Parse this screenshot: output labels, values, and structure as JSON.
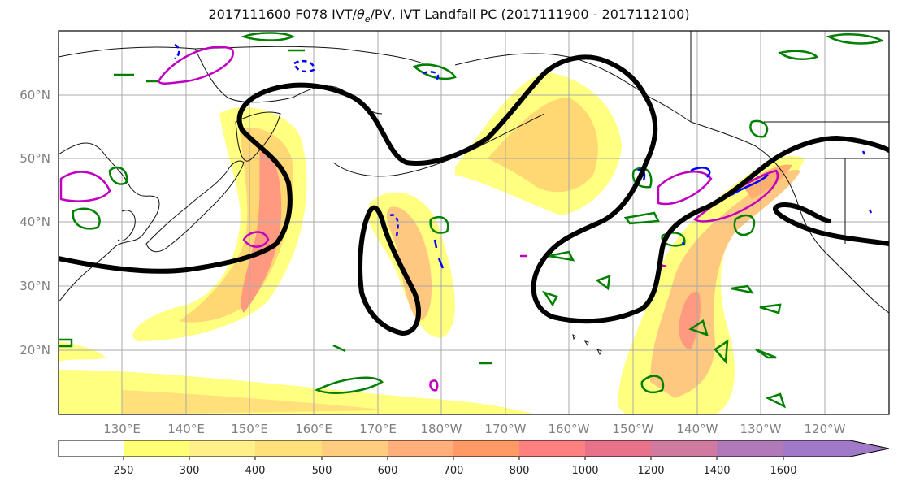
{
  "title": {
    "prefix": "2017111600 F078 IVT/",
    "theta": "θ",
    "theta_sub": "e",
    "suffix": "/PV, IVT Landfall PC (2017111900 - 2017112100)"
  },
  "map": {
    "lat_labels": [
      "60°N",
      "50°N",
      "40°N",
      "30°N",
      "20°N"
    ],
    "lon_labels": [
      "130°E",
      "140°E",
      "150°E",
      "160°E",
      "170°E",
      "180°W",
      "170°W",
      "160°W",
      "150°W",
      "140°W",
      "130°W",
      "120°W"
    ],
    "fill_colors": [
      "#ffffff",
      "#ffff73",
      "#fff08a",
      "#ffe07a",
      "#ffcc80",
      "#ffb07a",
      "#ff9966",
      "#ff8080",
      "#e8728a",
      "#d07aa0",
      "#b07ab8",
      "#a07ac8"
    ],
    "contour_colors": {
      "pc": "#000000",
      "theta_e": "#008000",
      "pv_pos": "#c000c0",
      "pv_neg": "#0000ff"
    }
  },
  "colorbar": {
    "ticks": [
      "250",
      "300",
      "400",
      "500",
      "600",
      "700",
      "800",
      "1000",
      "1200",
      "1400",
      "1600"
    ]
  }
}
